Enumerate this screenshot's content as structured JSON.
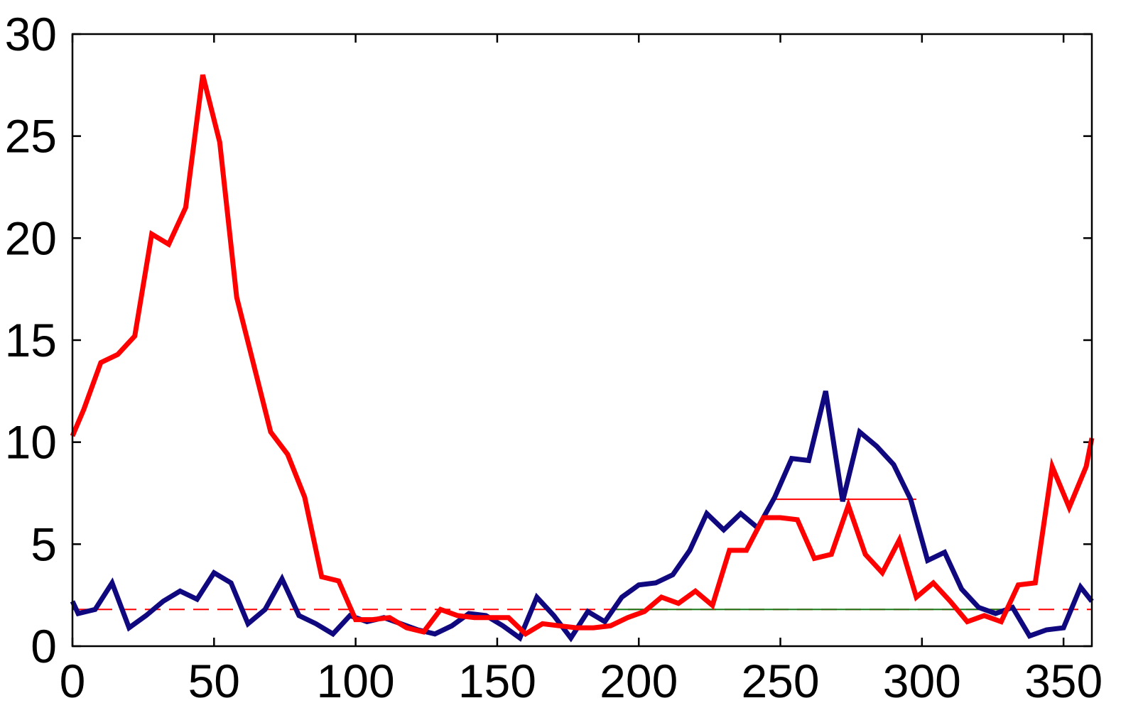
{
  "chart_data": {
    "type": "line",
    "title": "",
    "xlabel": "",
    "ylabel": "",
    "xlim": [
      0,
      360
    ],
    "ylim": [
      0,
      30
    ],
    "x_ticks": [
      0,
      50,
      100,
      150,
      200,
      250,
      300,
      350
    ],
    "y_ticks": [
      0,
      5,
      10,
      15,
      20,
      25,
      30
    ],
    "x_tick_labels": [
      "0",
      "50",
      "100",
      "150",
      "200",
      "250",
      "300",
      "350"
    ],
    "y_tick_labels": [
      "0",
      "5",
      "10",
      "15",
      "20",
      "25",
      "30"
    ],
    "grid": false,
    "legend": "none",
    "series": [
      {
        "color": "#ff0000",
        "line_style": "solid",
        "x": [
          0,
          4,
          10,
          16,
          22,
          28,
          34,
          40,
          46,
          52,
          58,
          64,
          70,
          76,
          82,
          88,
          94,
          100,
          106,
          112,
          118,
          124,
          130,
          136,
          142,
          148,
          154,
          160,
          166,
          172,
          178,
          184,
          190,
          196,
          202,
          208,
          214,
          220,
          226,
          232,
          238,
          244,
          250,
          256,
          262,
          268,
          274,
          280,
          286,
          292,
          298,
          304,
          310,
          316,
          322,
          328,
          334,
          340,
          346,
          352,
          358,
          360
        ],
        "y": [
          10.3,
          11.6,
          13.9,
          14.3,
          15.2,
          20.2,
          19.7,
          21.5,
          28.0,
          24.7,
          17.1,
          13.8,
          10.5,
          9.4,
          7.3,
          3.4,
          3.2,
          1.3,
          1.3,
          1.4,
          0.9,
          0.7,
          1.8,
          1.5,
          1.4,
          1.4,
          1.4,
          0.6,
          1.1,
          1.0,
          0.9,
          0.9,
          1.0,
          1.4,
          1.7,
          2.4,
          2.1,
          2.7,
          2.0,
          4.7,
          4.7,
          6.3,
          6.3,
          6.2,
          4.3,
          4.5,
          6.9,
          4.5,
          3.6,
          5.2,
          2.4,
          3.1,
          2.2,
          1.2,
          1.5,
          1.2,
          3.0,
          3.1,
          8.8,
          6.8,
          8.8,
          10.2
        ]
      },
      {
        "color": "#10087e",
        "line_style": "solid",
        "x": [
          0,
          2,
          8,
          14,
          20,
          26,
          32,
          38,
          44,
          50,
          56,
          62,
          68,
          74,
          80,
          86,
          92,
          98,
          104,
          110,
          116,
          122,
          128,
          134,
          140,
          146,
          152,
          158,
          164,
          170,
          176,
          182,
          188,
          194,
          200,
          206,
          212,
          218,
          224,
          230,
          236,
          242,
          248,
          254,
          260,
          266,
          272,
          278,
          284,
          290,
          296,
          302,
          308,
          314,
          320,
          326,
          332,
          338,
          344,
          350,
          356,
          360
        ],
        "y": [
          2.2,
          1.6,
          1.8,
          3.1,
          0.9,
          1.5,
          2.2,
          2.7,
          2.3,
          3.6,
          3.1,
          1.1,
          1.8,
          3.3,
          1.5,
          1.1,
          0.6,
          1.5,
          1.2,
          1.4,
          1.1,
          0.8,
          0.6,
          1.0,
          1.6,
          1.5,
          1.0,
          0.4,
          2.4,
          1.5,
          0.4,
          1.7,
          1.2,
          2.4,
          3.0,
          3.1,
          3.5,
          4.7,
          6.5,
          5.7,
          6.5,
          5.8,
          7.3,
          9.2,
          9.1,
          12.5,
          7.1,
          10.5,
          9.8,
          8.9,
          7.2,
          4.2,
          4.6,
          2.8,
          1.9,
          1.6,
          1.9,
          0.5,
          0.8,
          0.9,
          2.9,
          2.2
        ]
      },
      {
        "color": "#ff0000",
        "line_style": "dashed",
        "x": [
          0,
          360
        ],
        "y": [
          1.8,
          1.8
        ]
      },
      {
        "color": "#1a7a1a",
        "line_style": "solid",
        "x": [
          192,
          328
        ],
        "y": [
          1.8,
          1.8
        ]
      },
      {
        "color": "#ff0000",
        "line_style": "solid",
        "x": [
          248,
          298
        ],
        "y": [
          7.2,
          7.2
        ]
      }
    ]
  }
}
